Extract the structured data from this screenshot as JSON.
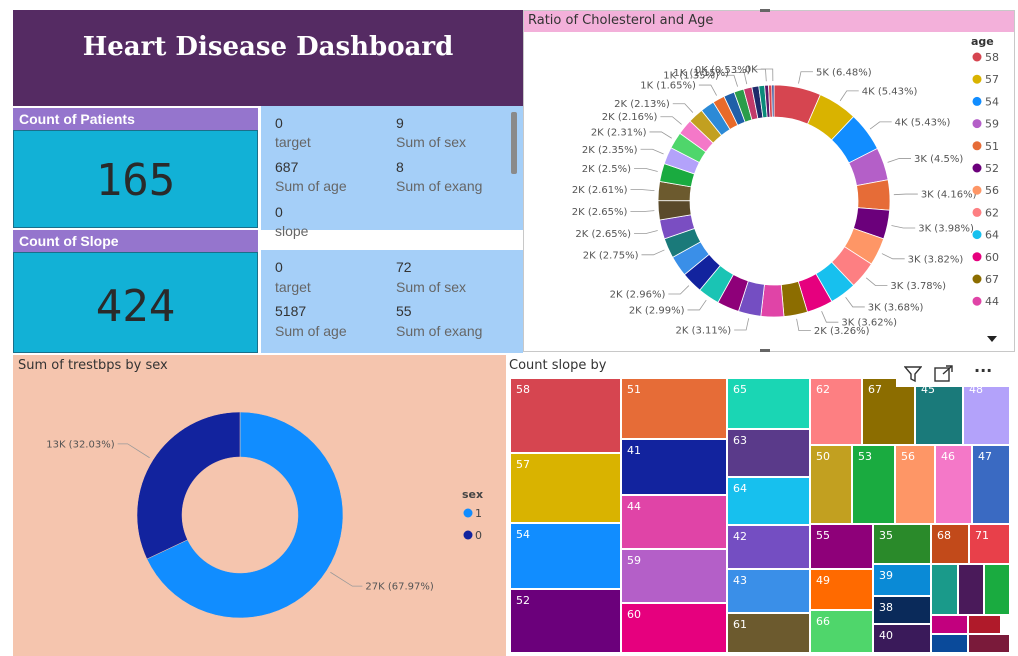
{
  "dashboard": {
    "title": "Heart Disease Dashboard"
  },
  "kpi_patients": {
    "label": "Count of Patients",
    "value": "165"
  },
  "kpi_slope": {
    "label": "Count of Slope",
    "value": "424"
  },
  "card1": {
    "fields": [
      {
        "value": "0",
        "label": "target"
      },
      {
        "value": "9",
        "label": "Sum of sex"
      },
      {
        "value": "687",
        "label": "Sum of age"
      },
      {
        "value": "8",
        "label": "Sum of exang"
      },
      {
        "value": "0",
        "label": "slope"
      }
    ]
  },
  "card2": {
    "fields": [
      {
        "value": "0",
        "label": "target"
      },
      {
        "value": "72",
        "label": "Sum of sex"
      },
      {
        "value": "5187",
        "label": "Sum of age"
      },
      {
        "value": "55",
        "label": "Sum of exang"
      }
    ]
  },
  "visual_toolbar": {
    "filter_icon": "filter-icon",
    "focus_icon": "focus-mode-icon",
    "more_icon": "more-options-icon",
    "more_label": "···"
  },
  "chart_data": [
    {
      "type": "pie",
      "variant": "donut",
      "title": "Ratio of Cholesterol and Age",
      "legend_title": "age",
      "legend_placement": "right",
      "legend": [
        {
          "name": "58",
          "color": "#d64550"
        },
        {
          "name": "57",
          "color": "#d9b300"
        },
        {
          "name": "54",
          "color": "#118dff"
        },
        {
          "name": "59",
          "color": "#b45fc8"
        },
        {
          "name": "51",
          "color": "#e66c37"
        },
        {
          "name": "52",
          "color": "#6b007b"
        },
        {
          "name": "56",
          "color": "#fe9666"
        },
        {
          "name": "62",
          "color": "#fd7f82"
        },
        {
          "name": "64",
          "color": "#17c0ee"
        },
        {
          "name": "60",
          "color": "#e6007e"
        },
        {
          "name": "67",
          "color": "#8c6d00"
        },
        {
          "name": "44",
          "color": "#e044a7"
        }
      ],
      "slices": [
        {
          "label": "5K (6.48%)",
          "percent": 6.48,
          "color": "#d64550"
        },
        {
          "label": "4K (5.43%)",
          "percent": 5.43,
          "color": "#d9b300"
        },
        {
          "label": "4K (5.43%)",
          "percent": 5.43,
          "color": "#118dff"
        },
        {
          "label": "3K (4.5%)",
          "percent": 4.5,
          "color": "#b45fc8"
        },
        {
          "label": "3K (4.16%)",
          "percent": 4.16,
          "color": "#e66c37"
        },
        {
          "label": "3K (3.98%)",
          "percent": 3.98,
          "color": "#6b007b"
        },
        {
          "label": "3K (3.82%)",
          "percent": 3.82,
          "color": "#fe9666"
        },
        {
          "label": "3K (3.78%)",
          "percent": 3.78,
          "color": "#fd7f82"
        },
        {
          "label": "3K (3.68%)",
          "percent": 3.68,
          "color": "#17c0ee"
        },
        {
          "label": "3K (3.62%)",
          "percent": 3.62,
          "color": "#e6007e"
        },
        {
          "label": "2K (3.26%)",
          "percent": 3.26,
          "color": "#8c6d00"
        },
        {
          "label": "",
          "percent": 3.15,
          "color": "#e044a7"
        },
        {
          "label": "2K (3.11%)",
          "percent": 3.11,
          "color": "#744ec2"
        },
        {
          "label": "",
          "percent": 3.05,
          "color": "#8e0079"
        },
        {
          "label": "2K (2.99%)",
          "percent": 2.99,
          "color": "#1ac4b4"
        },
        {
          "label": "2K (2.96%)",
          "percent": 2.96,
          "color": "#12239e"
        },
        {
          "label": "",
          "percent": 2.85,
          "color": "#3a8fe8"
        },
        {
          "label": "2K (2.75%)",
          "percent": 2.75,
          "color": "#1a7a7a"
        },
        {
          "label": "2K (2.65%)",
          "percent": 2.65,
          "color": "#7a4ec2"
        },
        {
          "label": "2K (2.65%)",
          "percent": 2.65,
          "color": "#5a4a2a"
        },
        {
          "label": "2K (2.61%)",
          "percent": 2.61,
          "color": "#6c5a2e"
        },
        {
          "label": "2K (2.5%)",
          "percent": 2.5,
          "color": "#1aab40"
        },
        {
          "label": "2K (2.35%)",
          "percent": 2.35,
          "color": "#b3a2fa"
        },
        {
          "label": "2K (2.31%)",
          "percent": 2.31,
          "color": "#4fd66b"
        },
        {
          "label": "2K (2.16%)",
          "percent": 2.16,
          "color": "#f478c8"
        },
        {
          "label": "2K (2.13%)",
          "percent": 2.13,
          "color": "#c2a020"
        },
        {
          "label": "",
          "percent": 1.95,
          "color": "#2c8ad6"
        },
        {
          "label": "1K (1.65%)",
          "percent": 1.65,
          "color": "#e86a2a"
        },
        {
          "label": "",
          "percent": 1.5,
          "color": "#1f5fa8"
        },
        {
          "label": "1K (1.35%)",
          "percent": 1.35,
          "color": "#2a9d4a"
        },
        {
          "label": "1K (1.15%)",
          "percent": 1.15,
          "color": "#c23a6a"
        },
        {
          "label": "",
          "percent": 0.95,
          "color": "#1e2a6a"
        },
        {
          "label": "",
          "percent": 0.8,
          "color": "#0a8a7a"
        },
        {
          "label": "0K (0.53%)",
          "percent": 0.53,
          "color": "#5a1a6a"
        },
        {
          "label": "",
          "percent": 0.45,
          "color": "#d64550"
        },
        {
          "label": "0K",
          "percent": 0.3,
          "color": "#1a3a8a"
        }
      ]
    },
    {
      "type": "pie",
      "variant": "donut",
      "title": "Sum of trestbps by sex",
      "legend_title": "sex",
      "legend_placement": "right",
      "slices": [
        {
          "name": "1",
          "label": "27K (67.97%)",
          "percent": 67.97,
          "color": "#118dff"
        },
        {
          "name": "0",
          "label": "13K (32.03%)",
          "percent": 32.03,
          "color": "#12239e"
        }
      ]
    },
    {
      "type": "treemap",
      "title": "Count slope by",
      "cells": [
        {
          "label": "58",
          "color": "#d64550"
        },
        {
          "label": "57",
          "color": "#d9b300"
        },
        {
          "label": "54",
          "color": "#118dff"
        },
        {
          "label": "52",
          "color": "#6b007b"
        },
        {
          "label": "51",
          "color": "#e66c37"
        },
        {
          "label": "41",
          "color": "#12239e"
        },
        {
          "label": "44",
          "color": "#e044a7"
        },
        {
          "label": "59",
          "color": "#b45fc8"
        },
        {
          "label": "60",
          "color": "#e6007e"
        },
        {
          "label": "65",
          "color": "#1ad6b4"
        },
        {
          "label": "63",
          "color": "#5a3a8a"
        },
        {
          "label": "64",
          "color": "#17c0ee"
        },
        {
          "label": "42",
          "color": "#744ec2"
        },
        {
          "label": "43",
          "color": "#3a8fe8"
        },
        {
          "label": "61",
          "color": "#6c5a2e"
        },
        {
          "label": "62",
          "color": "#fd7f82"
        },
        {
          "label": "67",
          "color": "#8c6d00"
        },
        {
          "label": "45",
          "color": "#1a7a7a"
        },
        {
          "label": "48",
          "color": "#b3a2fa"
        },
        {
          "label": "50",
          "color": "#c2a020"
        },
        {
          "label": "53",
          "color": "#1aab40"
        },
        {
          "label": "56",
          "color": "#fe9666"
        },
        {
          "label": "46",
          "color": "#f478c8"
        },
        {
          "label": "47",
          "color": "#3a6ac2"
        },
        {
          "label": "55",
          "color": "#8e0079"
        },
        {
          "label": "35",
          "color": "#2a8a2a"
        },
        {
          "label": "68",
          "color": "#c24a1a"
        },
        {
          "label": "71",
          "color": "#e8404a"
        },
        {
          "label": "49",
          "color": "#ff6a00"
        },
        {
          "label": "39",
          "color": "#0a8ad6"
        },
        {
          "label": "38",
          "color": "#0a2a5a"
        },
        {
          "label": "66",
          "color": "#4fd66b"
        },
        {
          "label": "40",
          "color": "#3a1a5a"
        },
        {
          "label": "",
          "color": "#1a9a8a"
        },
        {
          "label": "",
          "color": "#4a1a5a"
        },
        {
          "label": "",
          "color": "#1aab40"
        },
        {
          "label": "",
          "color": "#c2007e"
        },
        {
          "label": "",
          "color": "#b01a2a"
        },
        {
          "label": "",
          "color": "#0a4a9a"
        },
        {
          "label": "",
          "color": "#7a1a3a"
        }
      ]
    }
  ]
}
